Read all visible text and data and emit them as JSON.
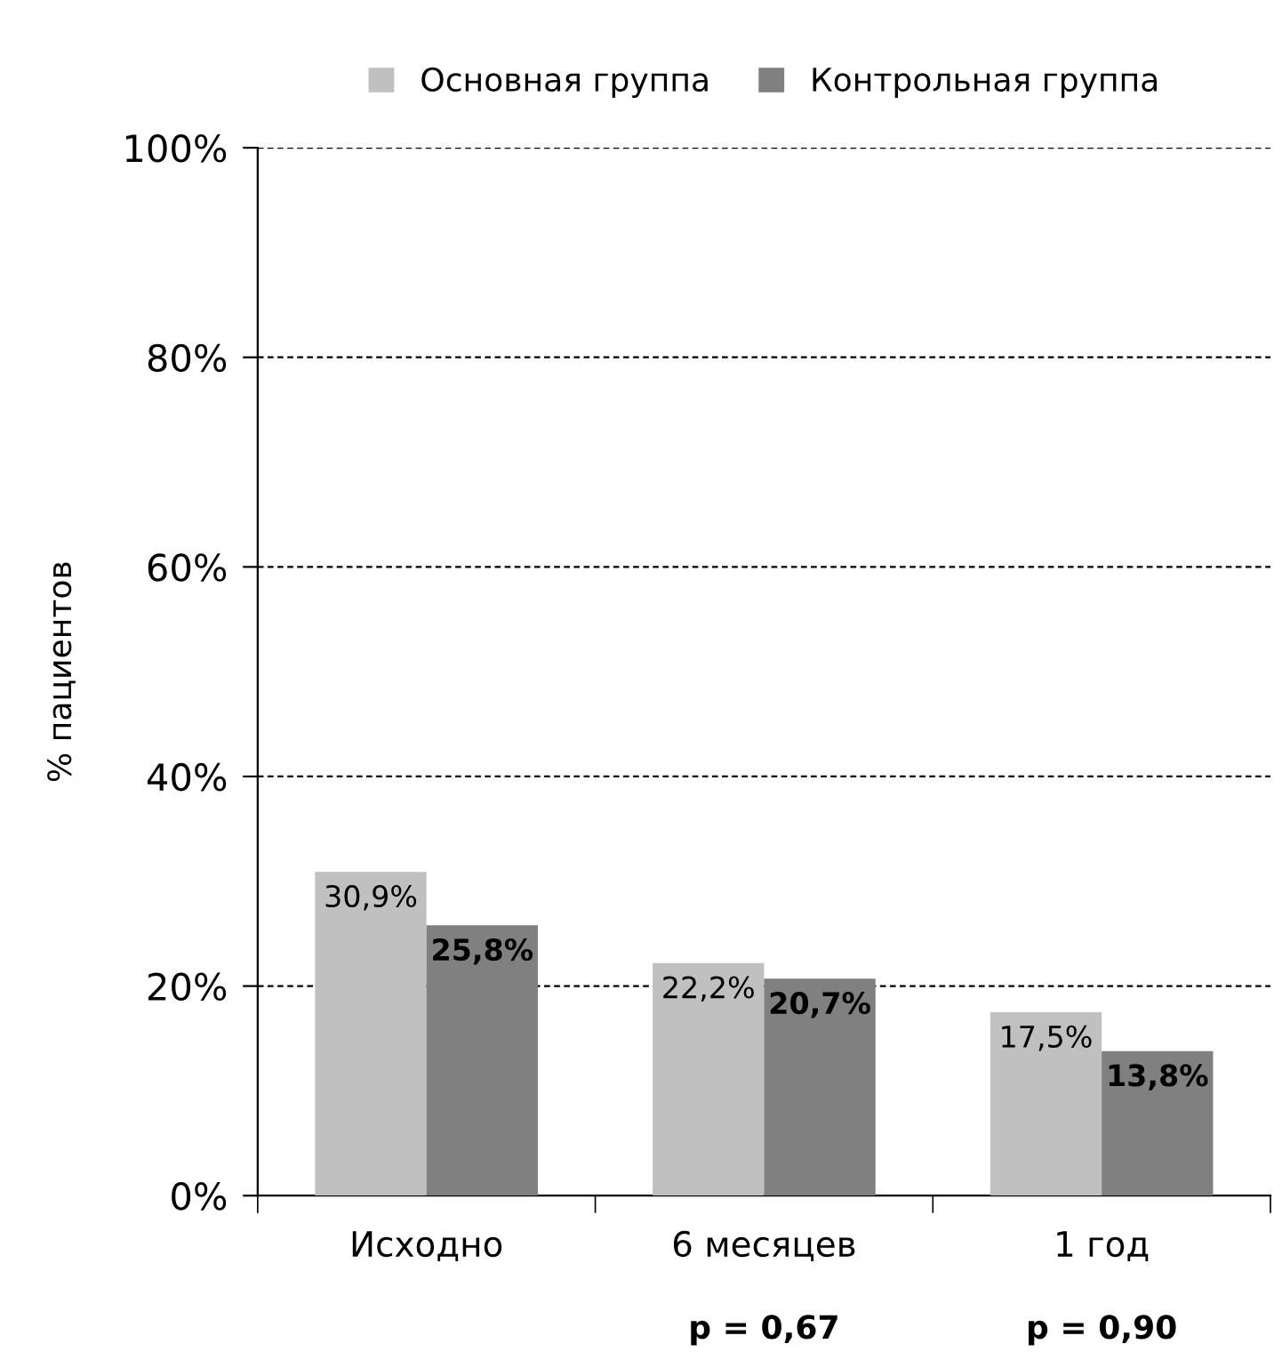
{
  "chart_data": {
    "type": "bar",
    "ylabel": "% пациентов",
    "categories": [
      "Исходно",
      "6 месяцев",
      "1 год"
    ],
    "series": [
      {
        "name": "Основная группа",
        "color": "#c0c0c0",
        "values": [
          30.9,
          22.2,
          17.5
        ],
        "value_labels": [
          "30,9%",
          "22,2%",
          "17,5%"
        ]
      },
      {
        "name": "Контрольная группа",
        "color": "#808080",
        "values": [
          25.8,
          20.7,
          13.8
        ],
        "value_labels": [
          "25,8%",
          "20,7%",
          "13,8%"
        ]
      }
    ],
    "ylim": [
      0,
      100
    ],
    "yticks": [
      {
        "value": 0,
        "label": "0%"
      },
      {
        "value": 20,
        "label": "20%"
      },
      {
        "value": 40,
        "label": "40%"
      },
      {
        "value": 60,
        "label": "60%"
      },
      {
        "value": 80,
        "label": "80%"
      },
      {
        "value": 100,
        "label": "100%"
      }
    ],
    "grid": "y",
    "legend": "top",
    "annotations": [
      "p = 0,67",
      "p = 0,90"
    ]
  }
}
